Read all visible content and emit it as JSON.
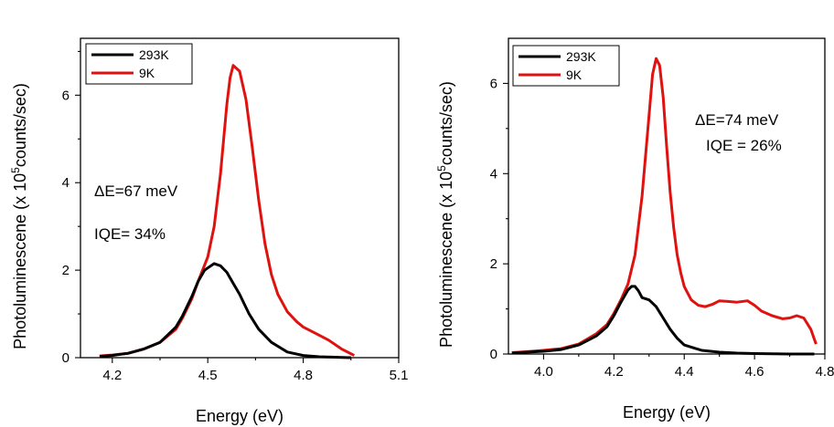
{
  "chart_data": [
    {
      "type": "line",
      "title": "",
      "xlabel": "Energy (eV)",
      "ylabel_main": "Photoluminescene (x 10",
      "ylabel_sup": "5",
      "ylabel_tail": "counts/sec)",
      "xlim": [
        4.1,
        5.1
      ],
      "ylim": [
        0,
        7.3
      ],
      "xticks": [
        4.2,
        4.5,
        4.8,
        5.1
      ],
      "xtick_labels": [
        "4.2",
        "4.5",
        "4.8",
        "5.1"
      ],
      "yticks": [
        0,
        2,
        4,
        6
      ],
      "ytick_labels": [
        "0",
        "2",
        "4",
        "6"
      ],
      "legend_position": "top-left",
      "annotations": [
        "ΔE=67 meV",
        "IQE= 34%"
      ],
      "series": [
        {
          "name": "293K",
          "color": "#000000",
          "x": [
            4.16,
            4.2,
            4.25,
            4.3,
            4.35,
            4.4,
            4.42,
            4.45,
            4.47,
            4.49,
            4.5,
            4.52,
            4.54,
            4.56,
            4.58,
            4.6,
            4.63,
            4.66,
            4.7,
            4.75,
            4.8,
            4.85,
            4.9,
            4.95
          ],
          "y": [
            0.03,
            0.05,
            0.1,
            0.2,
            0.35,
            0.7,
            0.95,
            1.4,
            1.75,
            2.0,
            2.05,
            2.15,
            2.1,
            1.95,
            1.7,
            1.45,
            1.0,
            0.65,
            0.35,
            0.13,
            0.05,
            0.02,
            0.01,
            0.0
          ]
        },
        {
          "name": "9K",
          "color": "#e0120f",
          "x": [
            4.16,
            4.2,
            4.25,
            4.3,
            4.35,
            4.4,
            4.42,
            4.45,
            4.47,
            4.5,
            4.52,
            4.54,
            4.56,
            4.57,
            4.58,
            4.6,
            4.62,
            4.64,
            4.66,
            4.68,
            4.7,
            4.72,
            4.75,
            4.78,
            4.8,
            4.84,
            4.88,
            4.92,
            4.96
          ],
          "y": [
            0.04,
            0.06,
            0.1,
            0.2,
            0.35,
            0.65,
            0.9,
            1.35,
            1.75,
            2.3,
            3.0,
            4.2,
            5.8,
            6.4,
            6.68,
            6.55,
            5.9,
            4.8,
            3.6,
            2.6,
            1.9,
            1.45,
            1.05,
            0.82,
            0.7,
            0.55,
            0.4,
            0.2,
            0.05
          ]
        }
      ]
    },
    {
      "type": "line",
      "title": "",
      "xlabel": "Energy (eV)",
      "ylabel_main": "Photoluminescene (x 10",
      "ylabel_sup": "5",
      "ylabel_tail": "counts/sec)",
      "xlim": [
        3.9,
        4.8
      ],
      "ylim": [
        0,
        7.0
      ],
      "xticks": [
        4.0,
        4.2,
        4.4,
        4.6,
        4.8
      ],
      "xtick_labels": [
        "4.0",
        "4.2",
        "4.4",
        "4.6",
        "4.8"
      ],
      "yticks": [
        0,
        2,
        4,
        6
      ],
      "ytick_labels": [
        "0",
        "2",
        "4",
        "6"
      ],
      "legend_position": "top-left",
      "annotations": [
        "ΔE=74 meV",
        "IQE = 26%"
      ],
      "series": [
        {
          "name": "293K",
          "color": "#000000",
          "x": [
            3.91,
            3.95,
            4.0,
            4.05,
            4.1,
            4.15,
            4.18,
            4.2,
            4.22,
            4.24,
            4.25,
            4.26,
            4.27,
            4.28,
            4.3,
            4.32,
            4.34,
            4.36,
            4.38,
            4.4,
            4.45,
            4.5,
            4.55,
            4.6,
            4.7,
            4.77
          ],
          "y": [
            0.02,
            0.04,
            0.06,
            0.1,
            0.2,
            0.4,
            0.6,
            0.85,
            1.15,
            1.42,
            1.5,
            1.5,
            1.4,
            1.25,
            1.2,
            1.05,
            0.8,
            0.55,
            0.35,
            0.2,
            0.08,
            0.04,
            0.02,
            0.01,
            0.0,
            0.0
          ]
        },
        {
          "name": "9K",
          "color": "#e0120f",
          "x": [
            3.91,
            3.95,
            4.0,
            4.05,
            4.1,
            4.15,
            4.18,
            4.2,
            4.22,
            4.24,
            4.26,
            4.28,
            4.3,
            4.31,
            4.32,
            4.33,
            4.34,
            4.35,
            4.36,
            4.37,
            4.38,
            4.39,
            4.4,
            4.42,
            4.44,
            4.46,
            4.48,
            4.5,
            4.52,
            4.55,
            4.58,
            4.6,
            4.62,
            4.65,
            4.68,
            4.7,
            4.72,
            4.74,
            4.76,
            4.775
          ],
          "y": [
            0.03,
            0.05,
            0.08,
            0.12,
            0.22,
            0.45,
            0.65,
            0.9,
            1.2,
            1.55,
            2.2,
            3.5,
            5.3,
            6.2,
            6.55,
            6.4,
            5.7,
            4.6,
            3.6,
            2.8,
            2.2,
            1.8,
            1.5,
            1.2,
            1.08,
            1.05,
            1.1,
            1.18,
            1.17,
            1.15,
            1.18,
            1.08,
            0.95,
            0.85,
            0.78,
            0.8,
            0.85,
            0.8,
            0.55,
            0.22
          ]
        }
      ]
    }
  ]
}
